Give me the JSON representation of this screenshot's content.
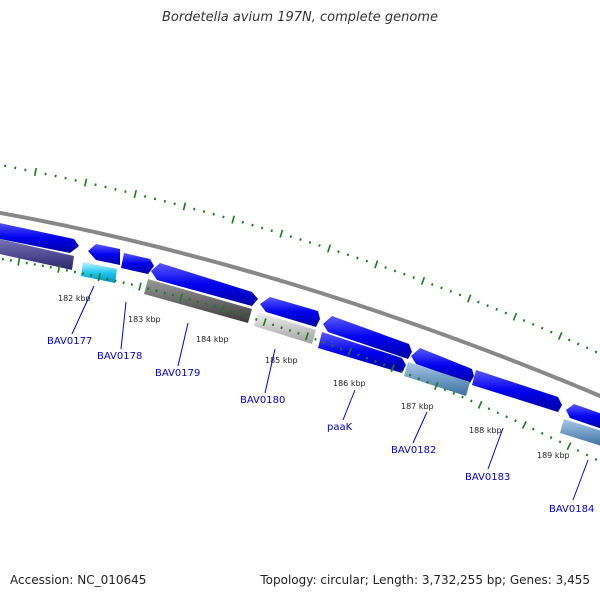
{
  "title": "Bordetella avium 197N, complete genome",
  "accession": "Accession: NC_010645",
  "summary": "Topology: circular; Length: 3,732,255 bp; Genes: 3,455",
  "colors": {
    "background": "#ffffff",
    "backbone": "#888888",
    "tick": "#1a7a1a",
    "gene_label": "#0000cc",
    "forward_gene": "#0000ee"
  },
  "kbp_labels": [
    "182 kbp",
    "183 kbp",
    "184 kbp",
    "185 kbp",
    "186 kbp",
    "187 kbp",
    "188 kbp",
    "189 kbp"
  ],
  "gene_labels": [
    "BAV0177",
    "BAV0178",
    "BAV0179",
    "BAV0180",
    "paaK",
    "BAV0182",
    "BAV0183",
    "BAV0184"
  ]
}
